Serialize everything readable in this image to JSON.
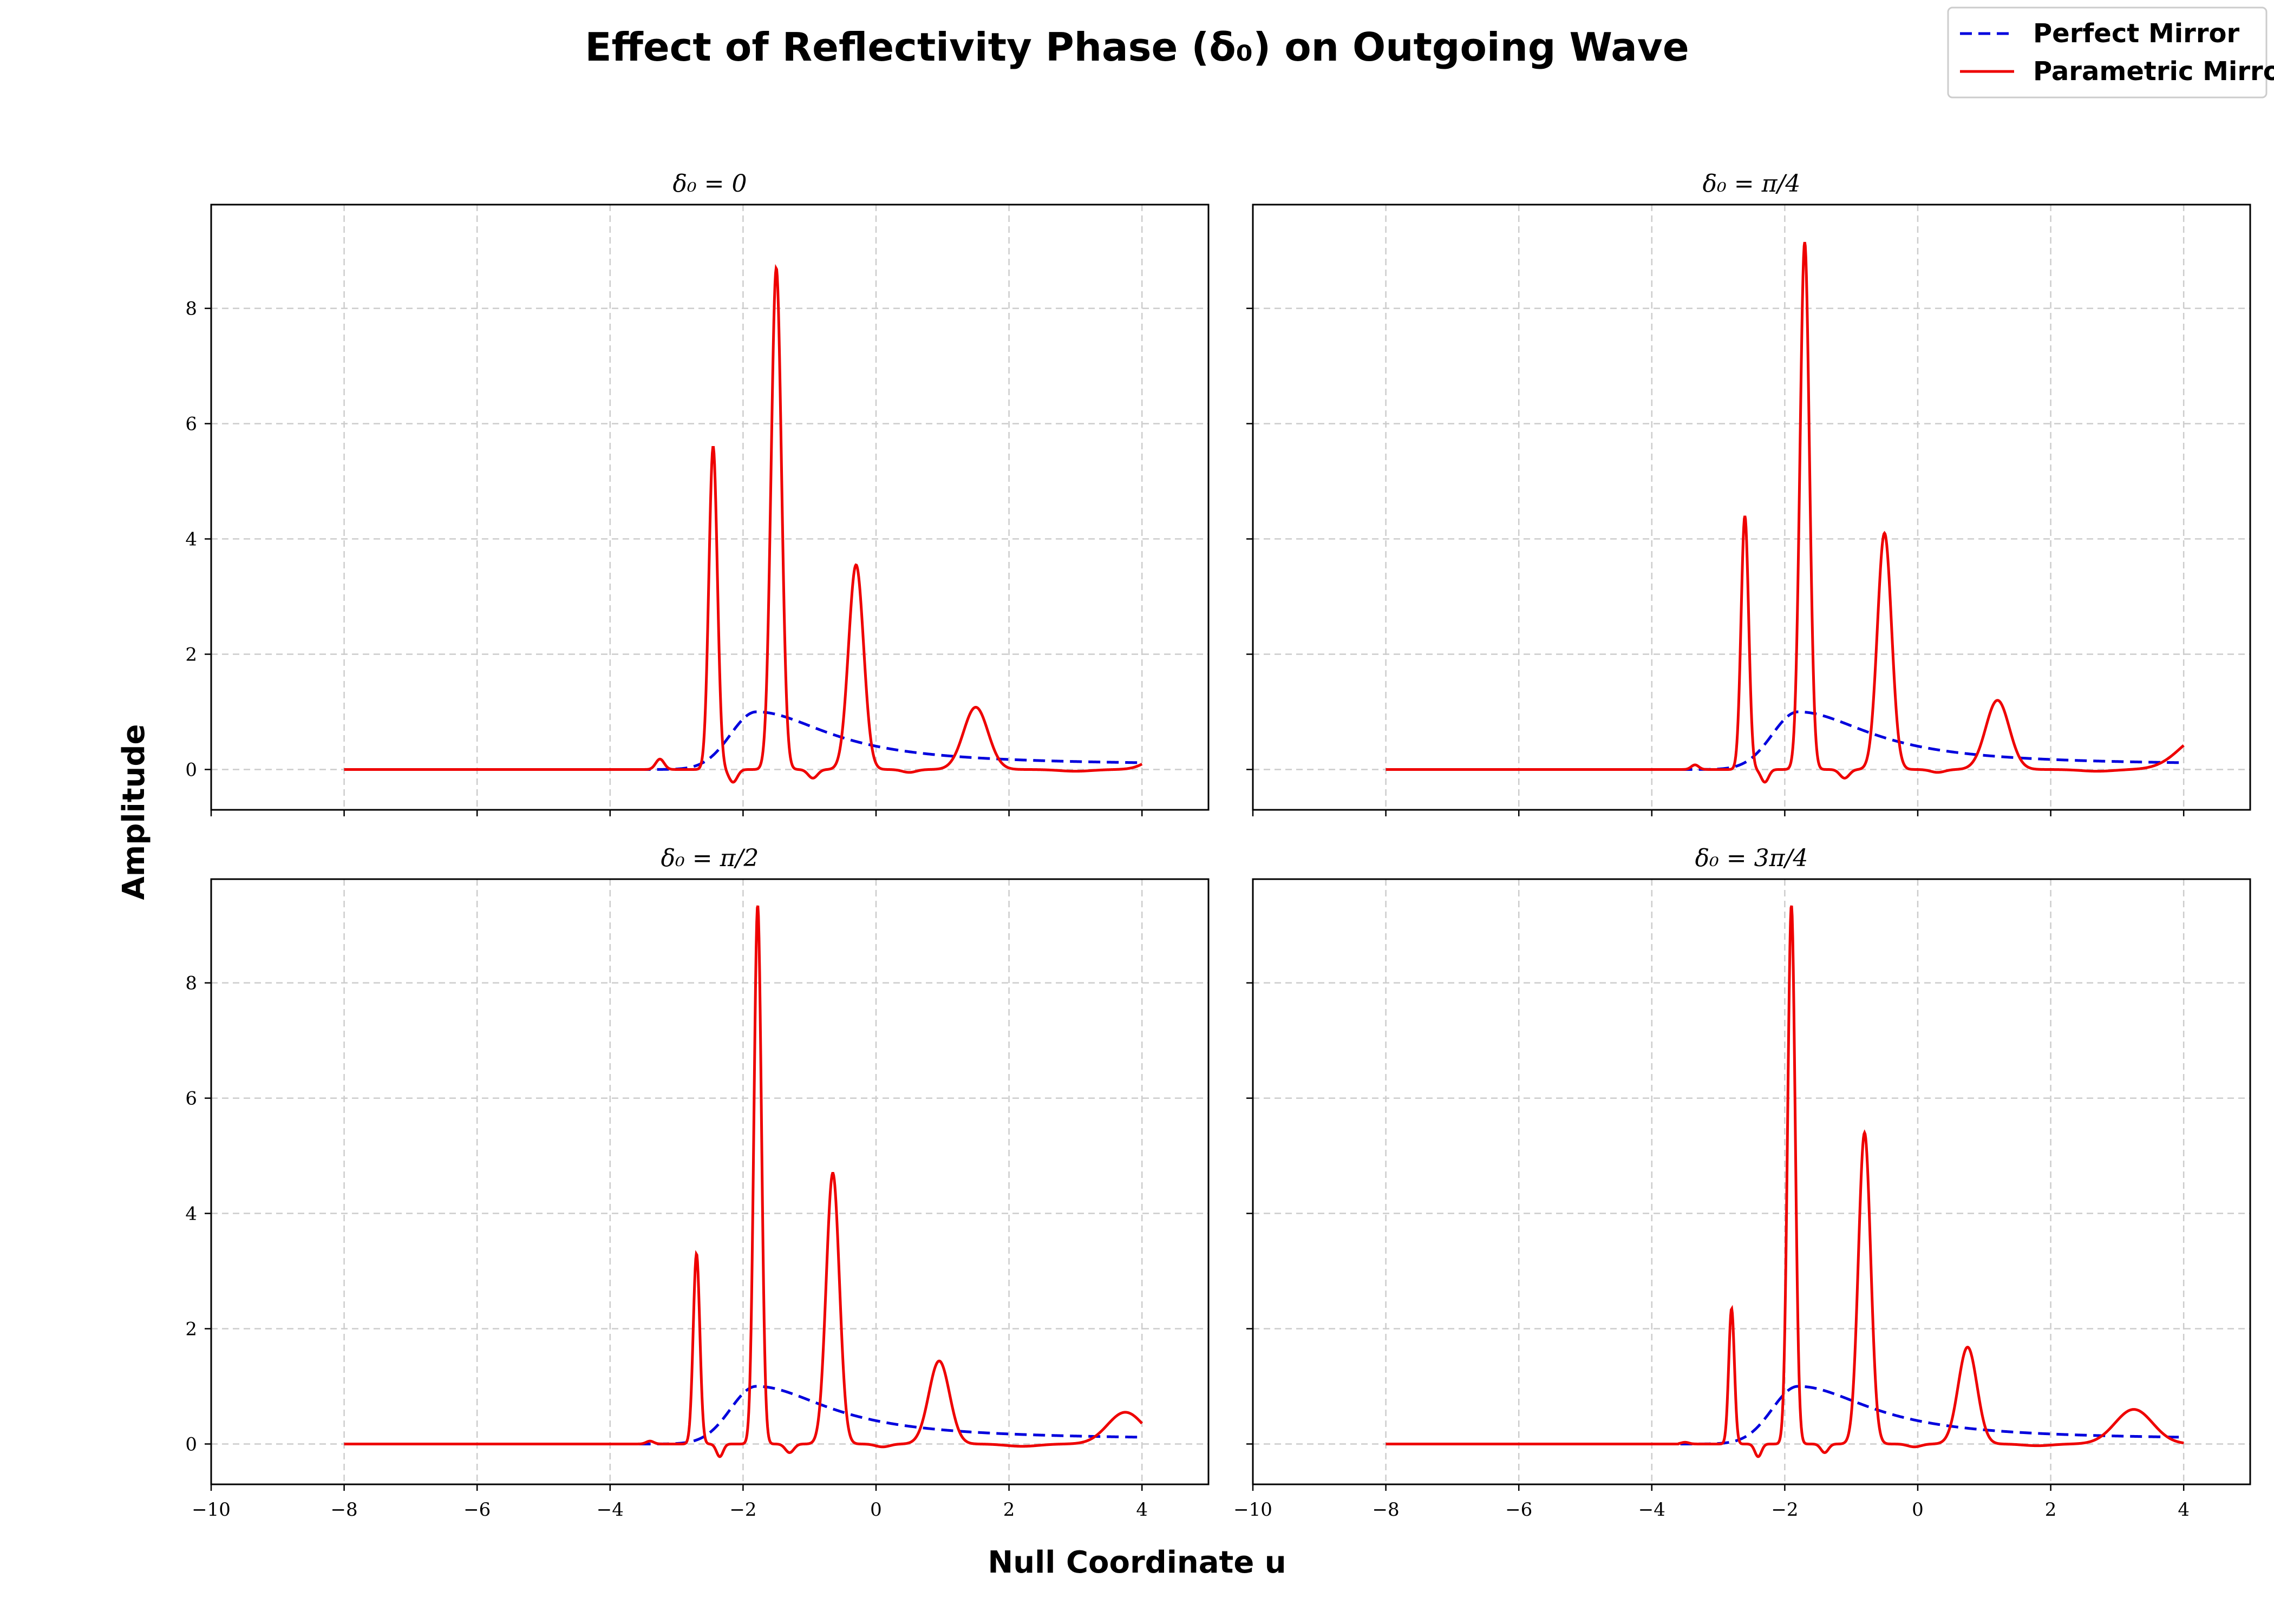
{
  "chart_data": {
    "type": "line",
    "title": "Effect of Reflectivity Phase (δ₀) on Outgoing Wave",
    "xlabel": "Null Coordinate u",
    "ylabel": "Amplitude",
    "xlim": [
      -10,
      5
    ],
    "ylim": [
      -0.7,
      9.8
    ],
    "x_ticks": [
      -10,
      -8,
      -6,
      -4,
      -2,
      0,
      2,
      4
    ],
    "y_ticks": [
      0,
      2,
      4,
      6,
      8
    ],
    "grid": true,
    "legend_position": "top-right",
    "legend": [
      {
        "name": "Perfect Mirror",
        "color": "#0000dd",
        "style": "dashed"
      },
      {
        "name": "Parametric Mirror",
        "color": "#ee0000",
        "style": "solid"
      }
    ],
    "perfect_mirror": {
      "u_range": [
        -8,
        4
      ],
      "peak_u": -1.8,
      "peak_value": 1.0,
      "tail_value_at_4": 0.07
    },
    "panels": [
      {
        "title": "δ₀ = 0",
        "parametric_peaks": [
          {
            "u": -3.25,
            "value": 0.18,
            "width": 0.09
          },
          {
            "u": -2.45,
            "value": 5.6,
            "width": 0.09
          },
          {
            "u": -2.15,
            "value": -0.22,
            "width": 0.09
          },
          {
            "u": -1.5,
            "value": 8.7,
            "width": 0.11
          },
          {
            "u": -0.95,
            "value": -0.15,
            "width": 0.1
          },
          {
            "u": -0.3,
            "value": 3.55,
            "width": 0.16
          },
          {
            "u": 0.5,
            "value": -0.05,
            "width": 0.15
          },
          {
            "u": 1.5,
            "value": 1.08,
            "width": 0.26
          },
          {
            "u": 3.0,
            "value": -0.03,
            "width": 0.35
          },
          {
            "u": 4.4,
            "value": 0.35,
            "width": 0.35
          }
        ]
      },
      {
        "title": "δ₀ = π/4",
        "parametric_peaks": [
          {
            "u": -3.35,
            "value": 0.08,
            "width": 0.08
          },
          {
            "u": -2.6,
            "value": 4.4,
            "width": 0.08
          },
          {
            "u": -2.3,
            "value": -0.22,
            "width": 0.08
          },
          {
            "u": -1.7,
            "value": 9.15,
            "width": 0.1
          },
          {
            "u": -1.1,
            "value": -0.15,
            "width": 0.1
          },
          {
            "u": -0.5,
            "value": 4.1,
            "width": 0.15
          },
          {
            "u": 0.3,
            "value": -0.05,
            "width": 0.15
          },
          {
            "u": 1.2,
            "value": 1.2,
            "width": 0.25
          },
          {
            "u": 2.7,
            "value": -0.03,
            "width": 0.35
          },
          {
            "u": 4.3,
            "value": 0.6,
            "width": 0.5
          }
        ]
      },
      {
        "title": "δ₀ = π/2",
        "parametric_peaks": [
          {
            "u": -3.4,
            "value": 0.05,
            "width": 0.08
          },
          {
            "u": -2.7,
            "value": 3.3,
            "width": 0.07
          },
          {
            "u": -2.35,
            "value": -0.22,
            "width": 0.07
          },
          {
            "u": -1.78,
            "value": 9.35,
            "width": 0.08
          },
          {
            "u": -1.3,
            "value": -0.15,
            "width": 0.09
          },
          {
            "u": -0.65,
            "value": 4.7,
            "width": 0.14
          },
          {
            "u": 0.1,
            "value": -0.05,
            "width": 0.15
          },
          {
            "u": 0.95,
            "value": 1.44,
            "width": 0.22
          },
          {
            "u": 2.2,
            "value": -0.04,
            "width": 0.35
          },
          {
            "u": 3.75,
            "value": 0.55,
            "width": 0.38
          }
        ]
      },
      {
        "title": "δ₀ = 3π/4",
        "parametric_peaks": [
          {
            "u": -3.5,
            "value": 0.03,
            "width": 0.08
          },
          {
            "u": -2.8,
            "value": 2.35,
            "width": 0.06
          },
          {
            "u": -2.4,
            "value": -0.22,
            "width": 0.07
          },
          {
            "u": -1.9,
            "value": 9.35,
            "width": 0.08
          },
          {
            "u": -1.4,
            "value": -0.15,
            "width": 0.08
          },
          {
            "u": -0.8,
            "value": 5.4,
            "width": 0.13
          },
          {
            "u": -0.05,
            "value": -0.05,
            "width": 0.14
          },
          {
            "u": 0.75,
            "value": 1.68,
            "width": 0.2
          },
          {
            "u": 1.8,
            "value": -0.03,
            "width": 0.3
          },
          {
            "u": 3.25,
            "value": 0.6,
            "width": 0.4
          }
        ]
      }
    ]
  }
}
